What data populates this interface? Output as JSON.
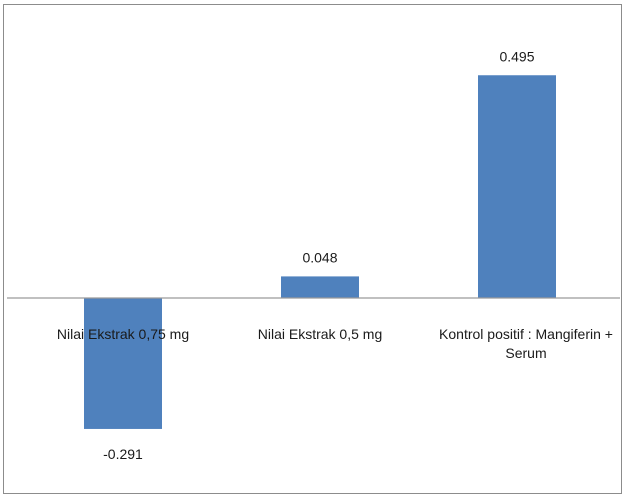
{
  "chart_data": {
    "type": "bar",
    "categories": [
      [
        "Nilai Ekstrak 0,75 mg"
      ],
      [
        "Nilai Ekstrak 0,5 mg"
      ],
      [
        "Kontrol positif : Mangiferin +",
        "Serum"
      ]
    ],
    "values": [
      -0.291,
      0.048,
      0.495
    ],
    "data_labels": [
      "-0.291",
      "0.048",
      "0.495"
    ],
    "title": "",
    "xlabel": "",
    "ylabel": "",
    "ylim": [
      -0.291,
      0.495
    ],
    "grid": false,
    "legend": "none",
    "bar_color": "#4f81bd",
    "axis_color": "#9a9a9a"
  }
}
